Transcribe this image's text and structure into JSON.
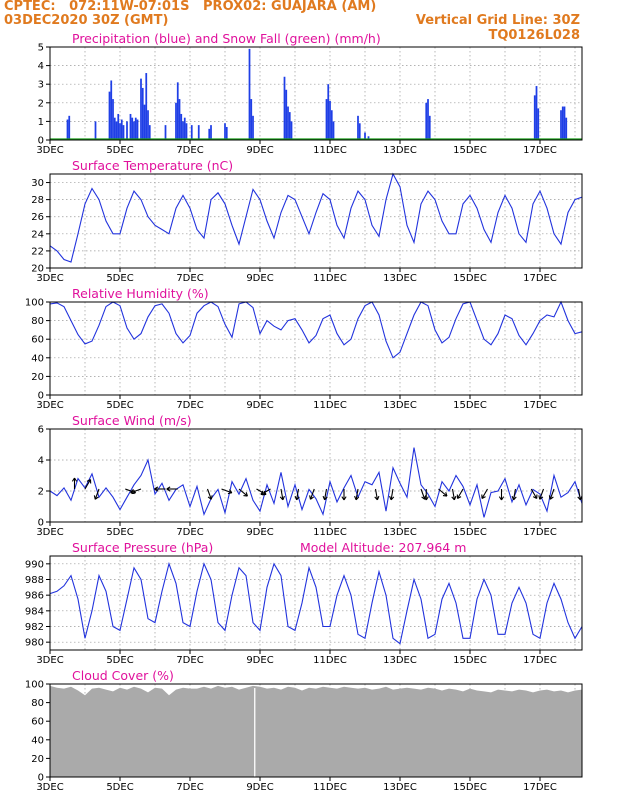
{
  "header": {
    "left_line1": "CPTEC:   072:11W-07:01S   PROX02: GUAJARA (AM)",
    "left_line2": "03DEC2020 30Z (GMT)",
    "right_line2": "Vertical Grid Line: 30Z",
    "right_line3": "TQ0126L028"
  },
  "colors": {
    "header": "#e07a1f",
    "title": "#e0119c",
    "precip": "#1f3fe6",
    "snow": "#1a9e1a",
    "line": "#2233dd",
    "cloud": "#aaaaaa",
    "grid": "#9a9a9a"
  },
  "x_axis_ticks": [
    "3DEC",
    "5DEC",
    "7DEC",
    "9DEC",
    "11DEC",
    "13DEC",
    "15DEC",
    "17DEC"
  ],
  "chart_data": [
    {
      "type": "bar",
      "title": "Precipitation (blue) and Snow Fall (green) (mm/h)",
      "ylim": [
        0,
        5
      ],
      "yticks": [
        0,
        1,
        2,
        3,
        4,
        5
      ],
      "x_start_day": 3,
      "x_end_day": 18.2,
      "bars": [
        [
          3.5,
          1.1
        ],
        [
          3.55,
          1.3
        ],
        [
          4.3,
          1.0
        ],
        [
          4.7,
          2.6
        ],
        [
          4.75,
          3.2
        ],
        [
          4.8,
          2.2
        ],
        [
          4.85,
          1.2
        ],
        [
          4.9,
          1.0
        ],
        [
          4.95,
          1.4
        ],
        [
          5.0,
          0.9
        ],
        [
          5.05,
          1.1
        ],
        [
          5.1,
          0.8
        ],
        [
          5.2,
          1.0
        ],
        [
          5.3,
          1.4
        ],
        [
          5.35,
          1.2
        ],
        [
          5.4,
          1.0
        ],
        [
          5.45,
          1.2
        ],
        [
          5.5,
          1.1
        ],
        [
          5.6,
          3.3
        ],
        [
          5.65,
          2.8
        ],
        [
          5.7,
          1.9
        ],
        [
          5.75,
          3.6
        ],
        [
          5.8,
          1.6
        ],
        [
          5.85,
          0.8
        ],
        [
          6.3,
          0.8
        ],
        [
          6.6,
          2.0
        ],
        [
          6.65,
          3.1
        ],
        [
          6.7,
          2.2
        ],
        [
          6.75,
          1.4
        ],
        [
          6.8,
          1.0
        ],
        [
          6.85,
          1.2
        ],
        [
          6.9,
          0.9
        ],
        [
          7.05,
          0.8
        ],
        [
          7.25,
          0.8
        ],
        [
          7.55,
          0.6
        ],
        [
          7.6,
          0.8
        ],
        [
          8.0,
          0.9
        ],
        [
          8.05,
          0.7
        ],
        [
          8.7,
          4.9
        ],
        [
          8.75,
          2.2
        ],
        [
          8.8,
          1.3
        ],
        [
          9.7,
          3.4
        ],
        [
          9.75,
          2.7
        ],
        [
          9.8,
          1.8
        ],
        [
          9.85,
          1.5
        ],
        [
          9.9,
          1.0
        ],
        [
          10.9,
          2.2
        ],
        [
          10.95,
          3.0
        ],
        [
          11.0,
          2.1
        ],
        [
          11.05,
          1.6
        ],
        [
          11.1,
          1.0
        ],
        [
          11.8,
          1.3
        ],
        [
          11.85,
          0.9
        ],
        [
          12.0,
          0.4
        ],
        [
          12.1,
          0.2
        ],
        [
          13.75,
          2.0
        ],
        [
          13.8,
          2.2
        ],
        [
          13.85,
          1.3
        ],
        [
          16.85,
          2.4
        ],
        [
          16.9,
          2.9
        ],
        [
          16.95,
          1.7
        ],
        [
          17.6,
          1.6
        ],
        [
          17.65,
          1.8
        ],
        [
          17.7,
          1.8
        ],
        [
          17.75,
          1.2
        ]
      ]
    },
    {
      "type": "line",
      "title": "Surface Temperature (nC)",
      "ylim": [
        20,
        31
      ],
      "yticks": [
        20,
        22,
        24,
        26,
        28,
        30
      ],
      "x": [
        3.0,
        3.2,
        3.4,
        3.6,
        3.8,
        4.0,
        4.2,
        4.4,
        4.6,
        4.8,
        5.0,
        5.2,
        5.4,
        5.6,
        5.8,
        6.0,
        6.2,
        6.4,
        6.6,
        6.8,
        7.0,
        7.2,
        7.4,
        7.6,
        7.8,
        8.0,
        8.2,
        8.4,
        8.6,
        8.8,
        9.0,
        9.2,
        9.4,
        9.6,
        9.8,
        10.0,
        10.2,
        10.4,
        10.6,
        10.8,
        11.0,
        11.2,
        11.4,
        11.6,
        11.8,
        12.0,
        12.2,
        12.4,
        12.6,
        12.8,
        13.0,
        13.2,
        13.4,
        13.6,
        13.8,
        14.0,
        14.2,
        14.4,
        14.6,
        14.8,
        15.0,
        15.2,
        15.4,
        15.6,
        15.8,
        16.0,
        16.2,
        16.4,
        16.6,
        16.8,
        17.0,
        17.2,
        17.4,
        17.6,
        17.8,
        18.0,
        18.2
      ],
      "y": [
        22.6,
        22.0,
        21.0,
        20.7,
        24.0,
        27.5,
        29.3,
        28.0,
        25.5,
        24.0,
        24.0,
        27.0,
        29.0,
        28.0,
        26.0,
        25.0,
        24.5,
        24.0,
        27.0,
        28.5,
        27.0,
        24.5,
        23.5,
        28.0,
        28.8,
        27.5,
        25.0,
        22.8,
        26.0,
        29.2,
        28.0,
        25.5,
        23.5,
        26.5,
        28.5,
        28.0,
        26.0,
        24.0,
        26.5,
        28.7,
        28.0,
        25.0,
        23.5,
        27.0,
        29.0,
        28.0,
        25.0,
        23.7,
        28.0,
        31.0,
        29.5,
        25.0,
        23.0,
        27.5,
        29.0,
        28.0,
        25.5,
        24.0,
        24.0,
        27.5,
        28.5,
        27.0,
        24.5,
        23.0,
        26.5,
        28.5,
        27.0,
        24.0,
        23.0,
        27.5,
        29.0,
        27.0,
        24.0,
        22.8,
        26.5,
        28.0,
        28.3
      ]
    },
    {
      "type": "line",
      "title": "Relative Humidity (%)",
      "ylim": [
        0,
        100
      ],
      "yticks": [
        0,
        20,
        40,
        60,
        80,
        100
      ],
      "x": [
        3.0,
        3.2,
        3.4,
        3.6,
        3.8,
        4.0,
        4.2,
        4.4,
        4.6,
        4.8,
        5.0,
        5.2,
        5.4,
        5.6,
        5.8,
        6.0,
        6.2,
        6.4,
        6.6,
        6.8,
        7.0,
        7.2,
        7.4,
        7.6,
        7.8,
        8.0,
        8.2,
        8.4,
        8.6,
        8.8,
        9.0,
        9.2,
        9.4,
        9.6,
        9.8,
        10.0,
        10.2,
        10.4,
        10.6,
        10.8,
        11.0,
        11.2,
        11.4,
        11.6,
        11.8,
        12.0,
        12.2,
        12.4,
        12.6,
        12.8,
        13.0,
        13.2,
        13.4,
        13.6,
        13.8,
        14.0,
        14.2,
        14.4,
        14.6,
        14.8,
        15.0,
        15.2,
        15.4,
        15.6,
        15.8,
        16.0,
        16.2,
        16.4,
        16.6,
        16.8,
        17.0,
        17.2,
        17.4,
        17.6,
        17.8,
        18.0,
        18.2
      ],
      "y": [
        98,
        99,
        95,
        80,
        65,
        55,
        58,
        75,
        95,
        100,
        96,
        72,
        60,
        66,
        84,
        96,
        98,
        88,
        66,
        56,
        64,
        88,
        96,
        100,
        95,
        76,
        62,
        98,
        100,
        94,
        66,
        80,
        74,
        70,
        80,
        82,
        70,
        56,
        64,
        82,
        86,
        66,
        54,
        60,
        82,
        96,
        100,
        86,
        58,
        40,
        46,
        66,
        86,
        100,
        96,
        70,
        56,
        62,
        82,
        98,
        100,
        80,
        60,
        54,
        66,
        86,
        82,
        64,
        54,
        66,
        80,
        86,
        84,
        100,
        80,
        66,
        68
      ]
    },
    {
      "type": "line",
      "title": "Surface Wind (m/s)",
      "ylim": [
        0,
        6
      ],
      "yticks": [
        0,
        2,
        4,
        6
      ],
      "x": [
        3.0,
        3.2,
        3.4,
        3.6,
        3.8,
        4.0,
        4.2,
        4.4,
        4.6,
        4.8,
        5.0,
        5.2,
        5.4,
        5.6,
        5.8,
        6.0,
        6.2,
        6.4,
        6.6,
        6.8,
        7.0,
        7.2,
        7.4,
        7.6,
        7.8,
        8.0,
        8.2,
        8.4,
        8.6,
        8.8,
        9.0,
        9.2,
        9.4,
        9.6,
        9.8,
        10.0,
        10.2,
        10.4,
        10.6,
        10.8,
        11.0,
        11.2,
        11.4,
        11.6,
        11.8,
        12.0,
        12.2,
        12.4,
        12.6,
        12.8,
        13.0,
        13.2,
        13.4,
        13.6,
        13.8,
        14.0,
        14.2,
        14.4,
        14.6,
        14.8,
        15.0,
        15.2,
        15.4,
        15.6,
        15.8,
        16.0,
        16.2,
        16.4,
        16.6,
        16.8,
        17.0,
        17.2,
        17.4,
        17.6,
        17.8,
        18.0,
        18.2
      ],
      "y": [
        2.0,
        1.7,
        2.2,
        1.4,
        2.8,
        2.2,
        3.1,
        1.6,
        2.2,
        1.6,
        0.8,
        1.6,
        2.4,
        3.0,
        4.0,
        1.8,
        2.5,
        1.4,
        2.1,
        2.4,
        1.0,
        2.3,
        0.5,
        1.5,
        2.1,
        0.6,
        2.6,
        1.8,
        2.8,
        1.4,
        0.7,
        2.4,
        1.2,
        3.2,
        1.0,
        2.4,
        0.8,
        2.1,
        1.5,
        0.5,
        2.6,
        1.3,
        2.2,
        3.0,
        1.6,
        2.6,
        2.4,
        3.2,
        0.7,
        3.5,
        2.5,
        1.6,
        4.8,
        2.4,
        1.8,
        1.0,
        2.6,
        2.0,
        3.0,
        2.3,
        1.1,
        2.4,
        0.3,
        1.9,
        2.0,
        2.8,
        1.3,
        2.4,
        1.1,
        2.1,
        1.8,
        0.7,
        3.0,
        1.6,
        1.9,
        2.6,
        1.2
      ],
      "arrows": [
        [
          3.7,
          2.0,
          270
        ],
        [
          4.0,
          2.0,
          300
        ],
        [
          4.4,
          2.0,
          110
        ],
        [
          5.15,
          2.0,
          20
        ],
        [
          5.6,
          2.0,
          160
        ],
        [
          6.3,
          2.0,
          180
        ],
        [
          6.65,
          2.0,
          180
        ],
        [
          7.5,
          2.0,
          70
        ],
        [
          7.9,
          2.0,
          20
        ],
        [
          8.4,
          2.0,
          40
        ],
        [
          8.9,
          2.0,
          30
        ],
        [
          9.3,
          2.0,
          150
        ],
        [
          9.6,
          2.0,
          80
        ],
        [
          10.1,
          2.0,
          100
        ],
        [
          10.55,
          2.0,
          110
        ],
        [
          10.9,
          2.0,
          100
        ],
        [
          11.4,
          2.0,
          90
        ],
        [
          11.8,
          2.0,
          100
        ],
        [
          12.3,
          2.0,
          80
        ],
        [
          12.8,
          2.0,
          100
        ],
        [
          13.6,
          2.0,
          70
        ],
        [
          13.75,
          2.0,
          90
        ],
        [
          14.1,
          2.0,
          40
        ],
        [
          14.5,
          2.0,
          80
        ],
        [
          14.8,
          2.0,
          120
        ],
        [
          15.5,
          2.0,
          120
        ],
        [
          15.9,
          2.0,
          90
        ],
        [
          16.3,
          2.0,
          100
        ],
        [
          16.75,
          2.0,
          60
        ],
        [
          17.1,
          2.0,
          110
        ],
        [
          17.4,
          2.0,
          110
        ],
        [
          18.1,
          2.0,
          80
        ]
      ]
    },
    {
      "type": "line",
      "title": "Surface Pressure (hPa)",
      "annotation": "Model Altitude: 207.964 m",
      "ylim": [
        979,
        991
      ],
      "yticks": [
        980,
        982,
        984,
        986,
        988,
        990
      ],
      "x": [
        3.0,
        3.2,
        3.4,
        3.6,
        3.8,
        4.0,
        4.2,
        4.4,
        4.6,
        4.8,
        5.0,
        5.2,
        5.4,
        5.6,
        5.8,
        6.0,
        6.2,
        6.4,
        6.6,
        6.8,
        7.0,
        7.2,
        7.4,
        7.6,
        7.8,
        8.0,
        8.2,
        8.4,
        8.6,
        8.8,
        9.0,
        9.2,
        9.4,
        9.6,
        9.8,
        10.0,
        10.2,
        10.4,
        10.6,
        10.8,
        11.0,
        11.2,
        11.4,
        11.6,
        11.8,
        12.0,
        12.2,
        12.4,
        12.6,
        12.8,
        13.0,
        13.2,
        13.4,
        13.6,
        13.8,
        14.0,
        14.2,
        14.4,
        14.6,
        14.8,
        15.0,
        15.2,
        15.4,
        15.6,
        15.8,
        16.0,
        16.2,
        16.4,
        16.6,
        16.8,
        17.0,
        17.2,
        17.4,
        17.6,
        17.8,
        18.0,
        18.2
      ],
      "y": [
        986.2,
        986.5,
        987.2,
        988.5,
        985.5,
        980.5,
        984.0,
        988.5,
        986.5,
        982.0,
        981.5,
        985.5,
        989.5,
        988.0,
        983.0,
        982.5,
        986.5,
        990.0,
        987.5,
        982.5,
        982.0,
        986.5,
        990.0,
        988.0,
        982.5,
        981.5,
        986.0,
        989.5,
        988.5,
        982.5,
        981.5,
        987.0,
        990.0,
        988.5,
        982.0,
        981.5,
        985.0,
        989.5,
        987.0,
        982.0,
        982.0,
        986.0,
        988.5,
        986.0,
        981.0,
        980.5,
        985.0,
        989.0,
        986.0,
        980.5,
        979.8,
        984.0,
        988.0,
        985.5,
        980.5,
        981.0,
        985.5,
        987.5,
        985.0,
        980.5,
        980.5,
        985.5,
        988.0,
        986.0,
        981.0,
        981.0,
        985.0,
        987.0,
        985.0,
        981.0,
        980.5,
        985.0,
        987.5,
        985.5,
        982.5,
        980.5,
        982.0
      ]
    },
    {
      "type": "area",
      "title": "Cloud Cover (%)",
      "ylim": [
        0,
        100
      ],
      "yticks": [
        0,
        20,
        40,
        60,
        80,
        100
      ],
      "x": [
        3.0,
        3.2,
        3.4,
        3.6,
        3.8,
        4.0,
        4.2,
        4.4,
        4.6,
        4.8,
        5.0,
        5.2,
        5.4,
        5.6,
        5.8,
        6.0,
        6.2,
        6.4,
        6.6,
        6.8,
        7.0,
        7.2,
        7.4,
        7.6,
        7.8,
        8.0,
        8.2,
        8.4,
        8.6,
        8.8,
        9.0,
        9.2,
        9.4,
        9.6,
        9.8,
        10.0,
        10.2,
        10.4,
        10.6,
        10.8,
        11.0,
        11.2,
        11.4,
        11.6,
        11.8,
        12.0,
        12.2,
        12.4,
        12.6,
        12.8,
        13.0,
        13.2,
        13.4,
        13.6,
        13.8,
        14.0,
        14.2,
        14.4,
        14.6,
        14.8,
        15.0,
        15.2,
        15.4,
        15.6,
        15.8,
        16.0,
        16.2,
        16.4,
        16.6,
        16.8,
        17.0,
        17.2,
        17.4,
        17.6,
        17.8,
        18.0,
        18.2
      ],
      "y": [
        98,
        96,
        95,
        97,
        93,
        88,
        95,
        96,
        94,
        92,
        96,
        94,
        97,
        95,
        91,
        96,
        95,
        88,
        94,
        96,
        95,
        95,
        97,
        95,
        98,
        96,
        97,
        94,
        96,
        98,
        97,
        95,
        96,
        94,
        97,
        96,
        93,
        96,
        95,
        97,
        96,
        95,
        97,
        96,
        95,
        96,
        94,
        95,
        97,
        94,
        95,
        96,
        95,
        94,
        96,
        95,
        93,
        95,
        94,
        92,
        95,
        93,
        92,
        91,
        94,
        93,
        92,
        94,
        93,
        91,
        93,
        94,
        92,
        93,
        91,
        93,
        94
      ]
    }
  ]
}
